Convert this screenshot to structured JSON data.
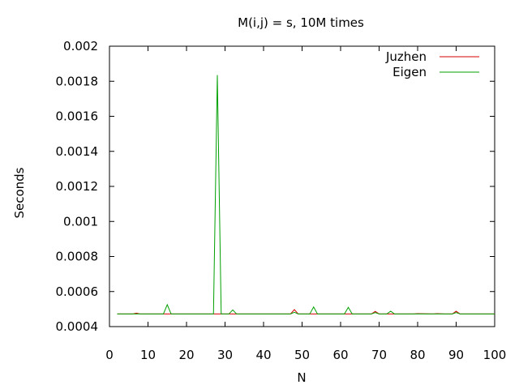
{
  "chart_data": {
    "type": "line",
    "title": "M(i,j) = s, 10M times",
    "xlabel": "N",
    "ylabel": "Seconds",
    "xlim": [
      0,
      100
    ],
    "ylim": [
      0.0004,
      0.002
    ],
    "xticks": [
      0,
      10,
      20,
      30,
      40,
      50,
      60,
      70,
      80,
      90,
      100
    ],
    "xtick_labels": [
      "0",
      "10",
      "20",
      "30",
      "40",
      "50",
      "60",
      "70",
      "80",
      "90",
      "100"
    ],
    "yticks": [
      0.0004,
      0.0006,
      0.0008,
      0.001,
      0.0012,
      0.0014,
      0.0016,
      0.0018,
      0.002
    ],
    "ytick_labels": [
      "0.0004",
      "0.0006",
      "0.0008",
      "0.001",
      "0.0012",
      "0.0014",
      "0.0016",
      "0.0018",
      "0.002"
    ],
    "grid": false,
    "legend_position": "top-right",
    "series": [
      {
        "name": "Juzhen",
        "color": "#d40000",
        "x": [
          2,
          6,
          7,
          8,
          47,
          48,
          49,
          54,
          64,
          67,
          68,
          69,
          70,
          79,
          80,
          84,
          85,
          87,
          89,
          90,
          91,
          100
        ],
        "y": [
          0.000472,
          0.000472,
          0.000477,
          0.000472,
          0.000472,
          0.000497,
          0.000472,
          0.000472,
          0.000472,
          0.000472,
          0.000472,
          0.000487,
          0.000472,
          0.000472,
          0.000474,
          0.000472,
          0.000474,
          0.000472,
          0.000472,
          0.000488,
          0.000472,
          0.000472
        ]
      },
      {
        "name": "Eigen",
        "color": "#00a000",
        "x": [
          2,
          14,
          15,
          16,
          27,
          28,
          29,
          31,
          32,
          33,
          47,
          48,
          49,
          52,
          53,
          54,
          61,
          62,
          63,
          68,
          69,
          70,
          72,
          73,
          74,
          89,
          90,
          91,
          100
        ],
        "y": [
          0.000472,
          0.000472,
          0.000525,
          0.000472,
          0.000472,
          0.001835,
          0.000472,
          0.000472,
          0.000495,
          0.000472,
          0.000472,
          0.000482,
          0.000472,
          0.000472,
          0.000512,
          0.000472,
          0.000472,
          0.00051,
          0.000472,
          0.000472,
          0.00048,
          0.000472,
          0.000472,
          0.000488,
          0.000472,
          0.000472,
          0.00048,
          0.000472,
          0.000472
        ]
      }
    ]
  }
}
